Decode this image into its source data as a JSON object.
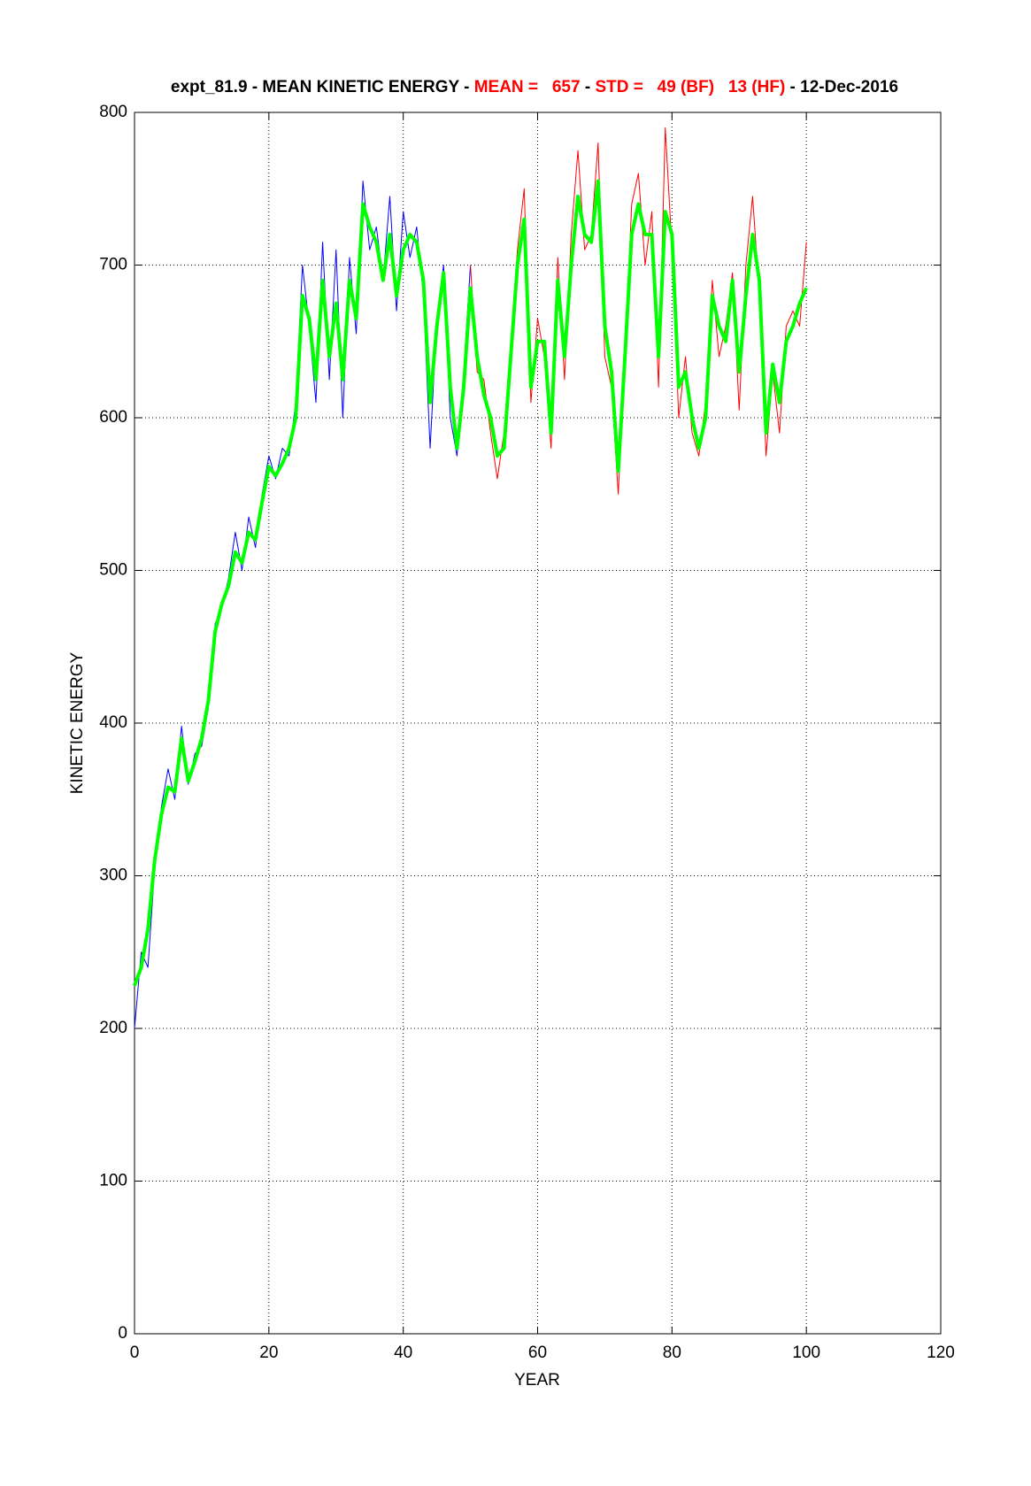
{
  "chart_data": {
    "type": "line",
    "title_parts": [
      {
        "text": "expt_81.9 - MEAN KINETIC ENERGY - ",
        "color": "#000000"
      },
      {
        "text": "MEAN =   657",
        "color": "#ff0000"
      },
      {
        "text": " - ",
        "color": "#000000"
      },
      {
        "text": "STD =   49 (BF)   13 (HF)",
        "color": "#ff0000"
      },
      {
        "text": " - 12-Dec-2016",
        "color": "#000000"
      }
    ],
    "xlabel": "YEAR",
    "ylabel": "KINETIC ENERGY",
    "xlim": [
      0,
      120
    ],
    "xticks": [
      0,
      20,
      40,
      60,
      80,
      100,
      120
    ],
    "ylim": [
      0,
      800
    ],
    "yticks": [
      0,
      100,
      200,
      300,
      400,
      500,
      600,
      700,
      800
    ],
    "grid": true,
    "series": [
      {
        "color": "#0000ff",
        "width": 1,
        "x": [
          0,
          1,
          2,
          3,
          4,
          5,
          6,
          7,
          8,
          9,
          10,
          11,
          12,
          13,
          14,
          15,
          16,
          17,
          18,
          19,
          20,
          21,
          22,
          23,
          24,
          25,
          26,
          27,
          28,
          29,
          30,
          31,
          32,
          33,
          34,
          35,
          36,
          37,
          38,
          39,
          40,
          41,
          42,
          43,
          44,
          45,
          46,
          47,
          48,
          49,
          50
        ],
        "values": [
          200,
          250,
          240,
          305,
          345,
          370,
          350,
          398,
          360,
          380,
          385,
          410,
          465,
          475,
          495,
          525,
          500,
          535,
          515,
          550,
          575,
          560,
          580,
          575,
          610,
          700,
          660,
          610,
          715,
          625,
          710,
          600,
          705,
          655,
          755,
          710,
          725,
          690,
          745,
          670,
          735,
          705,
          725,
          680,
          580,
          665,
          700,
          600,
          575,
          630,
          700
        ]
      },
      {
        "color": "#ff0000",
        "width": 1,
        "x": [
          50,
          51,
          52,
          53,
          54,
          55,
          56,
          57,
          58,
          59,
          60,
          61,
          62,
          63,
          64,
          65,
          66,
          67,
          68,
          69,
          70,
          71,
          72,
          73,
          74,
          75,
          76,
          77,
          78,
          79,
          80,
          81,
          82,
          83,
          84,
          85,
          86,
          87,
          88,
          89,
          90,
          91,
          92,
          93,
          94,
          95,
          96,
          97,
          98,
          99,
          100
        ],
        "values": [
          700,
          630,
          625,
          590,
          560,
          590,
          650,
          710,
          750,
          610,
          665,
          640,
          580,
          705,
          625,
          720,
          775,
          710,
          720,
          780,
          640,
          620,
          550,
          640,
          740,
          760,
          700,
          735,
          620,
          790,
          710,
          600,
          640,
          590,
          575,
          610,
          690,
          640,
          660,
          695,
          605,
          700,
          745,
          680,
          575,
          630,
          590,
          660,
          670,
          660,
          715
        ]
      },
      {
        "color": "#00ff00",
        "width": 4,
        "x": [
          0,
          1,
          2,
          3,
          4,
          5,
          6,
          7,
          8,
          9,
          10,
          11,
          12,
          13,
          14,
          15,
          16,
          17,
          18,
          19,
          20,
          21,
          22,
          23,
          24,
          25,
          26,
          27,
          28,
          29,
          30,
          31,
          32,
          33,
          34,
          35,
          36,
          37,
          38,
          39,
          40,
          41,
          42,
          43,
          44,
          45,
          46,
          47,
          48,
          49,
          50,
          51,
          52,
          53,
          54,
          55,
          56,
          57,
          58,
          59,
          60,
          61,
          62,
          63,
          64,
          65,
          66,
          67,
          68,
          69,
          70,
          71,
          72,
          73,
          74,
          75,
          76,
          77,
          78,
          79,
          80,
          81,
          82,
          83,
          84,
          85,
          86,
          87,
          88,
          89,
          90,
          91,
          92,
          93,
          94,
          95,
          96,
          97,
          98,
          99,
          100
        ],
        "values": [
          228,
          240,
          265,
          310,
          340,
          358,
          355,
          390,
          362,
          375,
          390,
          415,
          460,
          478,
          490,
          512,
          505,
          525,
          520,
          545,
          568,
          562,
          570,
          580,
          600,
          680,
          665,
          625,
          690,
          640,
          675,
          625,
          690,
          665,
          740,
          725,
          715,
          690,
          720,
          680,
          710,
          720,
          715,
          690,
          610,
          660,
          695,
          620,
          580,
          620,
          685,
          640,
          615,
          600,
          575,
          580,
          640,
          700,
          730,
          620,
          650,
          650,
          590,
          690,
          640,
          700,
          745,
          720,
          715,
          755,
          660,
          630,
          565,
          640,
          720,
          740,
          720,
          720,
          640,
          735,
          720,
          620,
          630,
          600,
          580,
          600,
          680,
          660,
          650,
          690,
          630,
          680,
          720,
          690,
          590,
          635,
          610,
          650,
          660,
          675,
          685
        ]
      }
    ]
  }
}
